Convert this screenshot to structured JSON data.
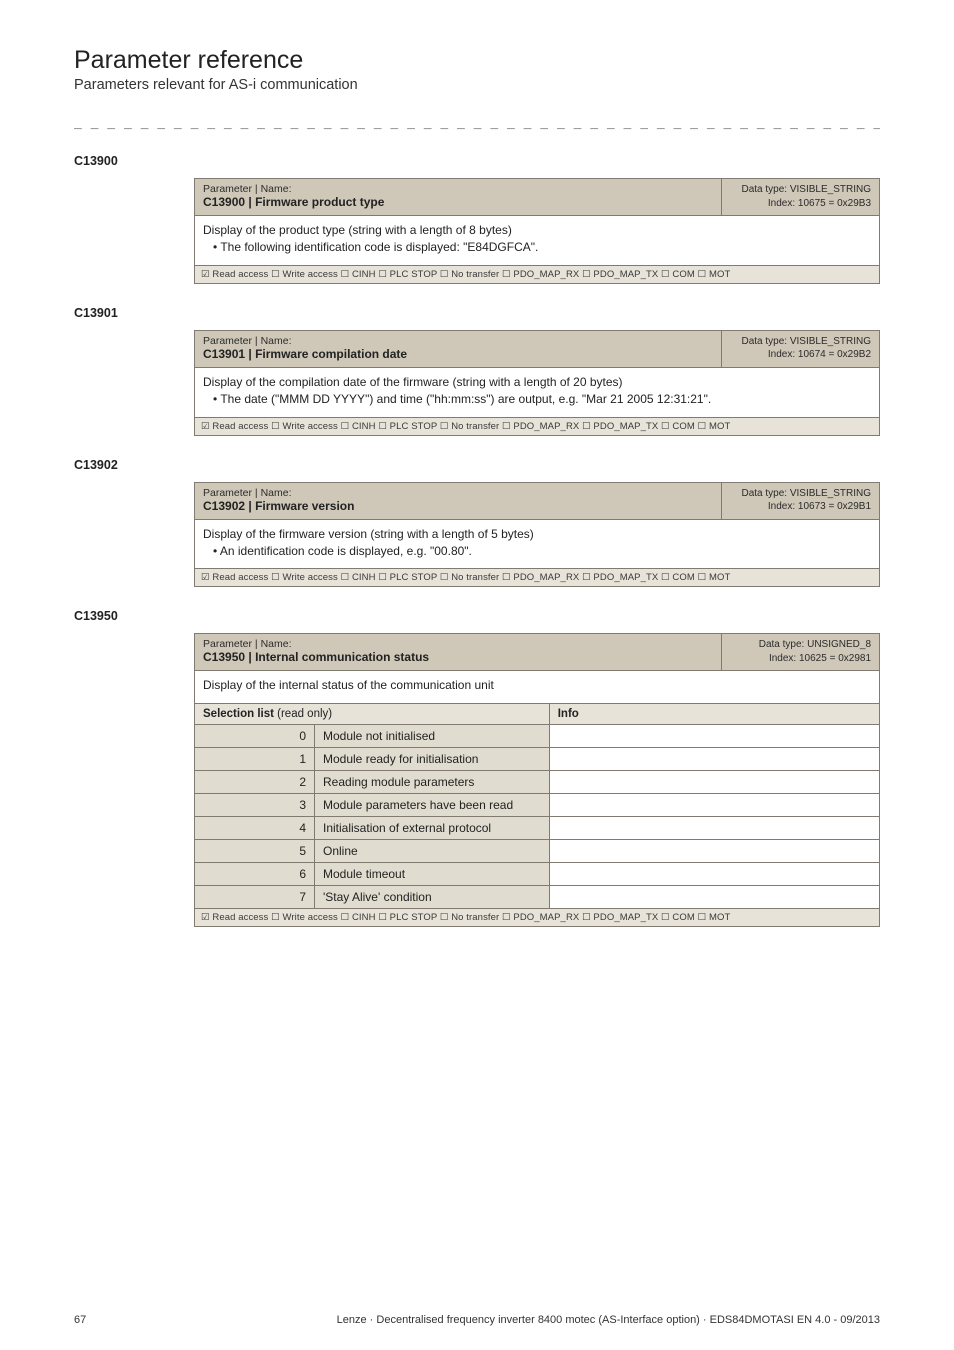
{
  "page": {
    "title": "Parameter reference",
    "subtitle": "Parameters relevant for AS-i communication",
    "dashline": "_ _ _ _ _ _ _ _ _ _ _ _ _ _ _ _ _ _ _ _ _ _ _ _ _ _ _ _ _ _ _ _ _ _ _ _ _ _ _ _ _ _ _ _ _ _ _ _ _ _ _ _ _ _ _ _ _ _ _ _ _ _ _ _"
  },
  "boxes": [
    {
      "section_id": "C13900",
      "hdr_label": "Parameter | Name:",
      "hdr_name_code": "C13900",
      "hdr_name_text": " | Firmware product type",
      "hdr_type": "Data type: VISIBLE_STRING",
      "hdr_index": "Index: 10675 = 0x29B3",
      "body_lines": [
        "Display of the product type (string with a length of 8 bytes)",
        " • The following identification code is displayed: \"E84DGFCA\"."
      ],
      "footer": "☑ Read access   ☐ Write access   ☐ CINH   ☐ PLC STOP   ☐ No transfer   ☐ PDO_MAP_RX   ☐ PDO_MAP_TX   ☐ COM   ☐ MOT"
    },
    {
      "section_id": "C13901",
      "hdr_label": "Parameter | Name:",
      "hdr_name_code": "C13901",
      "hdr_name_text": " | Firmware compilation date",
      "hdr_type": "Data type: VISIBLE_STRING",
      "hdr_index": "Index: 10674 = 0x29B2",
      "body_lines": [
        "Display of the compilation date of the firmware (string with a length of 20 bytes)",
        " • The date (\"MMM DD YYYY\") and time (\"hh:mm:ss\") are output, e.g. \"Mar 21 2005 12:31:21\"."
      ],
      "footer": "☑ Read access   ☐ Write access   ☐ CINH   ☐ PLC STOP   ☐ No transfer   ☐ PDO_MAP_RX   ☐ PDO_MAP_TX   ☐ COM   ☐ MOT"
    },
    {
      "section_id": "C13902",
      "hdr_label": "Parameter | Name:",
      "hdr_name_code": "C13902",
      "hdr_name_text": " | Firmware version",
      "hdr_type": "Data type: VISIBLE_STRING",
      "hdr_index": "Index: 10673 = 0x29B1",
      "body_lines": [
        "Display of the firmware version (string with a length of 5 bytes)",
        " • An identification code is displayed, e.g. \"00.80\"."
      ],
      "footer": "☑ Read access   ☐ Write access   ☐ CINH   ☐ PLC STOP   ☐ No transfer   ☐ PDO_MAP_RX   ☐ PDO_MAP_TX   ☐ COM   ☐ MOT"
    }
  ],
  "list_box": {
    "section_id": "C13950",
    "hdr_label": "Parameter | Name:",
    "hdr_name_code": "C13950",
    "hdr_name_text": " | Internal communication status",
    "hdr_type": "Data type: UNSIGNED_8",
    "hdr_index": "Index: 10625 = 0x2981",
    "body_line": "Display of the internal status of the communication unit",
    "sel_label": "Selection list",
    "sel_suffix": " (read only)",
    "info_label": "Info",
    "rows": [
      {
        "n": "0",
        "t": "Module not initialised"
      },
      {
        "n": "1",
        "t": "Module ready for initialisation"
      },
      {
        "n": "2",
        "t": "Reading module parameters"
      },
      {
        "n": "3",
        "t": "Module parameters have been read"
      },
      {
        "n": "4",
        "t": "Initialisation of external protocol"
      },
      {
        "n": "5",
        "t": "Online"
      },
      {
        "n": "6",
        "t": "Module timeout"
      },
      {
        "n": "7",
        "t": "'Stay Alive' condition"
      }
    ],
    "footer": "☑ Read access   ☐ Write access   ☐ CINH   ☐ PLC STOP   ☐ No transfer   ☐ PDO_MAP_RX   ☐ PDO_MAP_TX   ☐ COM   ☐ MOT"
  },
  "footer": {
    "page_no": "67",
    "doc_line": "Lenze · Decentralised frequency inverter 8400 motec (AS-Interface option) · EDS84DMOTASI EN 4.0 - 09/2013"
  }
}
